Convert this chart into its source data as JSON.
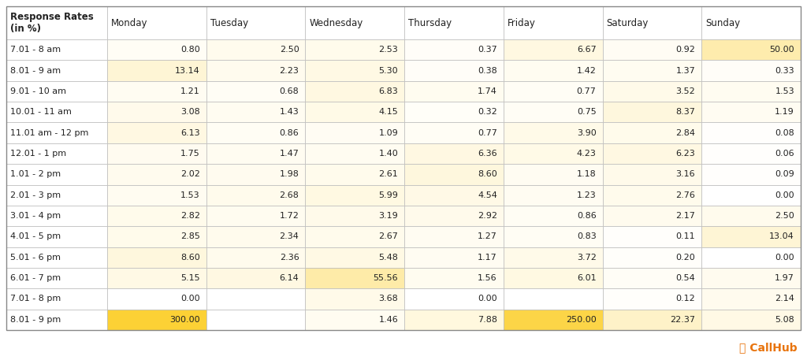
{
  "row_labels": [
    "7.01 - 8 am",
    "8.01 - 9 am",
    "9.01 - 10 am",
    "10.01 - 11 am",
    "11.01 am - 12 pm",
    "12.01 - 1 pm",
    "1.01 - 2 pm",
    "2.01 - 3 pm",
    "3.01 - 4 pm",
    "4.01 - 5 pm",
    "5.01 - 6 pm",
    "6.01 - 7 pm",
    "7.01 - 8 pm",
    "8.01 - 9 pm"
  ],
  "col_labels": [
    "Monday",
    "Tuesday",
    "Wednesday",
    "Thursday",
    "Friday",
    "Saturday",
    "Sunday"
  ],
  "header_label": "Response Rates\n(in %)",
  "values": [
    [
      0.8,
      2.5,
      2.53,
      0.37,
      6.67,
      0.92,
      50.0
    ],
    [
      13.14,
      2.23,
      5.3,
      0.38,
      1.42,
      1.37,
      0.33
    ],
    [
      1.21,
      0.68,
      6.83,
      1.74,
      0.77,
      3.52,
      1.53
    ],
    [
      3.08,
      1.43,
      4.15,
      0.32,
      0.75,
      8.37,
      1.19
    ],
    [
      6.13,
      0.86,
      1.09,
      0.77,
      3.9,
      2.84,
      0.08
    ],
    [
      1.75,
      1.47,
      1.4,
      6.36,
      4.23,
      6.23,
      0.06
    ],
    [
      2.02,
      1.98,
      2.61,
      8.6,
      1.18,
      3.16,
      0.09
    ],
    [
      1.53,
      2.68,
      5.99,
      4.54,
      1.23,
      2.76,
      0.0
    ],
    [
      2.82,
      1.72,
      3.19,
      2.92,
      0.86,
      2.17,
      2.5
    ],
    [
      2.85,
      2.34,
      2.67,
      1.27,
      0.83,
      0.11,
      13.04
    ],
    [
      8.6,
      2.36,
      5.48,
      1.17,
      3.72,
      0.2,
      0.0
    ],
    [
      5.15,
      6.14,
      55.56,
      1.56,
      6.01,
      0.54,
      1.97
    ],
    [
      0.0,
      null,
      3.68,
      0.0,
      null,
      0.12,
      2.14
    ],
    [
      300.0,
      null,
      1.46,
      7.88,
      250.0,
      22.37,
      5.08
    ]
  ],
  "callhub_color": "#E8730C",
  "border_color": "#BBBBBB",
  "text_dark": "#222222",
  "header_fontsize": 8.5,
  "cell_fontsize": 8.0,
  "col_header_fontsize": 8.5,
  "row_label_fontsize": 8.0,
  "figwidth": 10.24,
  "figheight": 4.57,
  "dpi": 100
}
